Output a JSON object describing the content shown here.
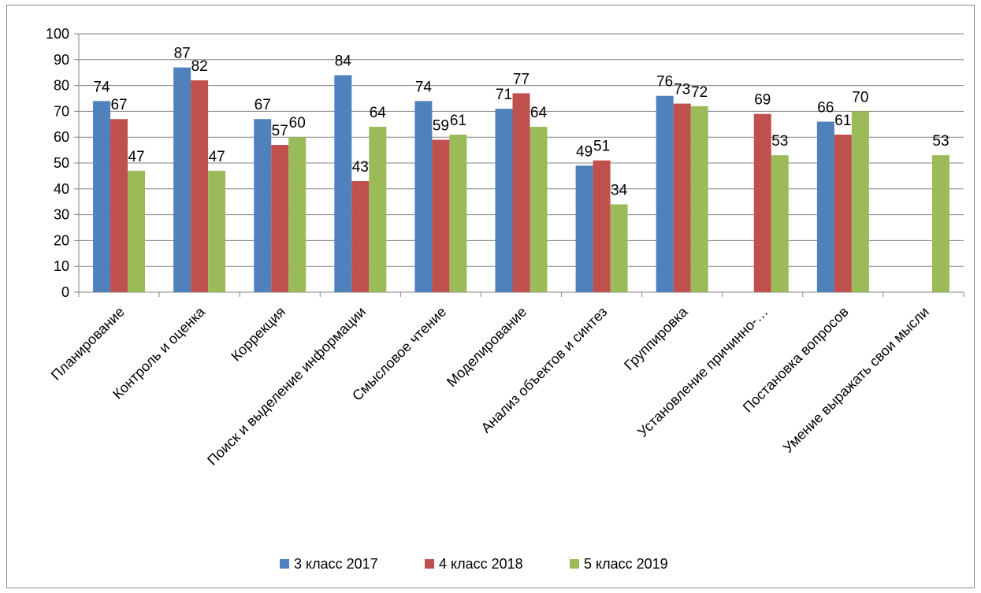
{
  "chart_data": {
    "type": "bar",
    "title": "",
    "xlabel": "",
    "ylabel": "",
    "ylim": [
      0,
      100
    ],
    "yticks": [
      0,
      10,
      20,
      30,
      40,
      50,
      60,
      70,
      80,
      90,
      100
    ],
    "grid": true,
    "legend_position": "bottom",
    "categories": [
      "Планирование",
      "Контроль и оценка",
      "Коррекция",
      "Поиск и выделение  информации",
      "Смысловое чтение",
      "Моделирование",
      "Анализ объектов и синтез",
      "Группировка",
      "Установление причинно-…",
      "Постановка вопросов",
      "Умение выражать свои мысли"
    ],
    "series": [
      {
        "name": "3 класс 2017",
        "color": "#4f81bd",
        "values": [
          74,
          87,
          67,
          84,
          74,
          71,
          49,
          76,
          null,
          66,
          null
        ]
      },
      {
        "name": "4 класс 2018",
        "color": "#c0504d",
        "values": [
          67,
          82,
          57,
          43,
          59,
          77,
          51,
          73,
          69,
          61,
          null
        ]
      },
      {
        "name": "5 класс 2019",
        "color": "#9bbb59",
        "values": [
          47,
          47,
          60,
          64,
          61,
          64,
          34,
          72,
          53,
          70,
          53
        ]
      }
    ]
  }
}
